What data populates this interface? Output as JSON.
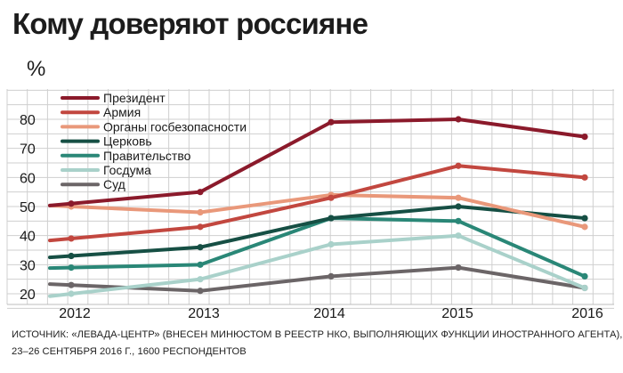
{
  "header": {
    "title": "Кому доверяют россияне",
    "unit": "%"
  },
  "chart_data": {
    "type": "line",
    "x": [
      "2012",
      "2013",
      "2014",
      "2015",
      "2016"
    ],
    "yticks": [
      20,
      30,
      40,
      50,
      60,
      70,
      80
    ],
    "ylim": [
      17,
      87
    ],
    "grid": true,
    "legend_position": "top-left",
    "series": [
      {
        "name": "Президент",
        "color": "#8b1a2b",
        "values": [
          51,
          55,
          79,
          80,
          74
        ]
      },
      {
        "name": "Армия",
        "color": "#c2473f",
        "values": [
          39,
          43,
          53,
          64,
          60
        ]
      },
      {
        "name": "Органы госбезопасности",
        "color": "#e9987a",
        "values": [
          50,
          48,
          54,
          53,
          43
        ]
      },
      {
        "name": "Церковь",
        "color": "#164f44",
        "values": [
          33,
          36,
          46,
          50,
          46
        ]
      },
      {
        "name": "Правительство",
        "color": "#2a8777",
        "values": [
          29,
          30,
          46,
          45,
          26
        ]
      },
      {
        "name": "Госдума",
        "color": "#a9d1ca",
        "values": [
          20,
          25,
          37,
          40,
          22
        ]
      },
      {
        "name": "Суд",
        "color": "#6b6567",
        "values": [
          23,
          21,
          26,
          29,
          22
        ]
      }
    ]
  },
  "footer": {
    "source_line1": "ИСТОЧНИК: «ЛЕВАДА-ЦЕНТР» (ВНЕСЕН МИНЮСТОМ В РЕЕСТР НКО, ВЫПОЛНЯЮЩИХ ФУНКЦИИ ИНОСТРАННОГО АГЕНТА),",
    "source_line2": "23–26 СЕНТЯБРЯ 2016 Г., 1600 РЕСПОНДЕНТОВ"
  }
}
